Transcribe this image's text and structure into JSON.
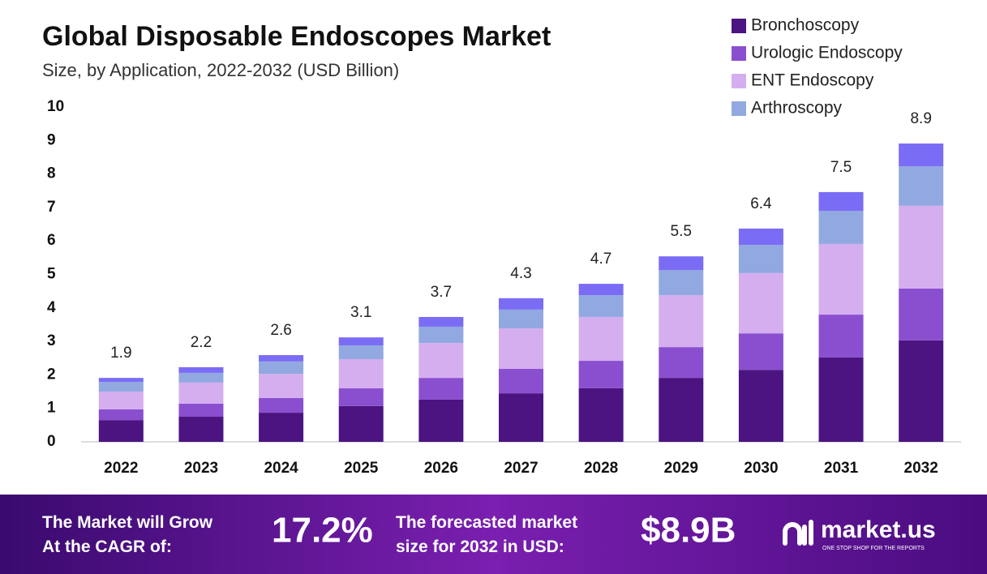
{
  "chart_data": {
    "type": "stacked_bar",
    "title": "Global Disposable Endoscopes Market",
    "subtitle": "Size, by Application, 2022-2032 (USD Billion)",
    "categories": [
      "2022",
      "2023",
      "2024",
      "2025",
      "2026",
      "2027",
      "2028",
      "2029",
      "2030",
      "2031",
      "2032"
    ],
    "series": [
      {
        "name": "Bronchoscopy",
        "color": "#4b1480",
        "values": [
          0.65,
          0.75,
          0.87,
          1.07,
          1.26,
          1.45,
          1.6,
          1.91,
          2.15,
          2.52,
          3.03
        ]
      },
      {
        "name": "Urologic Endoscopy",
        "color": "#8a4fcf",
        "values": [
          0.32,
          0.39,
          0.44,
          0.53,
          0.65,
          0.73,
          0.82,
          0.92,
          1.09,
          1.28,
          1.55
        ]
      },
      {
        "name": "ENT Endoscopy",
        "color": "#d5aef0",
        "values": [
          0.53,
          0.63,
          0.72,
          0.87,
          1.04,
          1.21,
          1.31,
          1.55,
          1.8,
          2.11,
          2.47
        ]
      },
      {
        "name": "Arthroscopy",
        "color": "#92a8e0",
        "values": [
          0.29,
          0.29,
          0.37,
          0.41,
          0.49,
          0.56,
          0.65,
          0.75,
          0.84,
          0.99,
          1.18
        ]
      },
      {
        "color": "#7b6cf5",
        "values": [
          0.12,
          0.17,
          0.19,
          0.24,
          0.29,
          0.34,
          0.34,
          0.41,
          0.49,
          0.56,
          0.68
        ]
      }
    ],
    "totals": [
      1.9,
      2.2,
      2.6,
      3.1,
      3.7,
      4.3,
      4.7,
      5.5,
      6.4,
      7.5,
      8.9
    ],
    "ylim": [
      0,
      10
    ],
    "yticks": [
      0,
      1,
      2,
      3,
      4,
      5,
      6,
      7,
      8,
      9,
      10
    ],
    "legend": "top-right"
  },
  "footer": {
    "cagr_text": "The Market will Grow At the CAGR of:",
    "cagr": "17.2%",
    "forecast_text": "The forecasted market size for 2032 in USD:",
    "forecast": "$8.9B",
    "brand": "market.us",
    "tagline": "ONE STOP SHOP FOR THE REPORTS"
  }
}
